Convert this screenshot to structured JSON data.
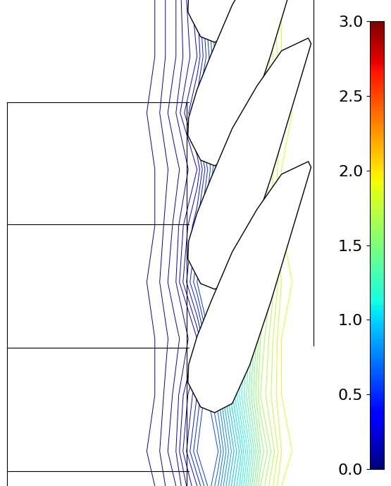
{
  "chart_data": {
    "type": "contour",
    "color": "jet",
    "tick_labels": false,
    "x": [
      180,
      220,
      250,
      280,
      310,
      340,
      370,
      400,
      430,
      445
    ],
    "y": [
      0,
      80,
      160,
      240,
      320,
      400,
      480,
      560,
      640,
      689
    ],
    "values": [
      [
        0.05,
        0.1,
        0.2,
        0.4,
        0.8,
        1.3,
        1.7,
        1.85,
        1.9,
        1.9
      ],
      [
        0.05,
        0.1,
        0.2,
        0.35,
        0.7,
        1.2,
        1.6,
        1.85,
        1.9,
        1.9
      ],
      [
        0.05,
        0.12,
        0.25,
        0.5,
        0.6,
        1.0,
        1.5,
        1.8,
        1.9,
        1.9
      ],
      [
        0.05,
        0.1,
        0.18,
        0.3,
        0.7,
        1.1,
        1.6,
        1.85,
        1.9,
        1.9
      ],
      [
        0.05,
        0.1,
        0.22,
        0.45,
        0.75,
        1.2,
        1.65,
        1.85,
        1.9,
        1.9
      ],
      [
        0.05,
        0.12,
        0.25,
        0.55,
        0.6,
        1.0,
        1.5,
        1.8,
        1.9,
        1.9
      ],
      [
        0.05,
        0.1,
        0.18,
        0.3,
        0.7,
        1.1,
        1.6,
        1.85,
        1.9,
        1.9
      ],
      [
        0.05,
        0.1,
        0.22,
        0.45,
        0.75,
        1.2,
        1.65,
        1.85,
        1.9,
        1.9
      ],
      [
        0.05,
        0.12,
        0.25,
        0.55,
        0.6,
        1.0,
        1.5,
        1.8,
        1.9,
        1.9
      ],
      [
        0.05,
        0.1,
        0.2,
        0.4,
        0.7,
        1.1,
        1.6,
        1.85,
        1.9,
        1.9
      ]
    ],
    "levels": [
      0.1,
      0.15,
      0.2,
      0.25,
      0.3,
      0.35,
      0.4,
      0.45,
      0.5,
      0.55,
      0.6,
      0.65,
      0.7,
      0.75,
      0.8,
      0.85,
      0.9,
      0.95,
      1.0,
      1.05,
      1.1,
      1.15,
      1.2,
      1.25,
      1.3,
      1.35,
      1.4,
      1.45,
      1.5,
      1.55,
      1.6,
      1.65,
      1.7,
      1.75,
      1.8,
      1.85,
      1.9
    ],
    "colorbar": {
      "range": [
        0,
        3
      ],
      "ticks": [
        {
          "value": 0,
          "label": "0.0"
        },
        {
          "value": 0.5,
          "label": "0.5"
        },
        {
          "value": 1,
          "label": "1.0"
        },
        {
          "value": 1.5,
          "label": "1.5"
        },
        {
          "value": 2,
          "label": "2.0"
        },
        {
          "value": 2.5,
          "label": "2.5"
        },
        {
          "value": 3,
          "label": "3.0"
        }
      ]
    }
  }
}
